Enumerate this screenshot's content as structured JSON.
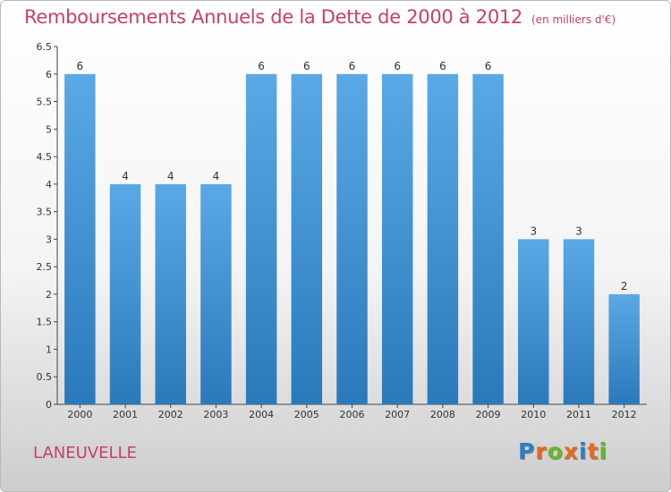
{
  "page": {
    "title": "Remboursements Annuels de la Dette de 2000 à 2012",
    "subtitle": "(en milliers d'€)",
    "place": "LANEUVELLE",
    "logo_letters": [
      "P",
      "r",
      "o",
      "x",
      "i",
      "t",
      "i"
    ],
    "logo_colors": [
      "#2c7fc9",
      "#e8681e",
      "#66b72c",
      "#e8681e",
      "#2c7fc9",
      "#e8681e",
      "#66b72c"
    ]
  },
  "chart_data": {
    "type": "bar",
    "title": "Remboursements Annuels de la Dette de 2000 à 2012",
    "xlabel": "",
    "ylabel": "",
    "categories": [
      "2000",
      "2001",
      "2002",
      "2003",
      "2004",
      "2005",
      "2006",
      "2007",
      "2008",
      "2009",
      "2010",
      "2011",
      "2012"
    ],
    "values": [
      6,
      4,
      4,
      4,
      6,
      6,
      6,
      6,
      6,
      6,
      3,
      3,
      2
    ],
    "data_labels": [
      "6",
      "4",
      "4",
      "4",
      "6",
      "6",
      "6",
      "6",
      "6",
      "6",
      "3",
      "3",
      "2"
    ],
    "ylim": [
      0,
      6.5
    ],
    "yticks": [
      0,
      0.5,
      1,
      1.5,
      2,
      2.5,
      3,
      3.5,
      4,
      4.5,
      5,
      5.5,
      6,
      6.5
    ],
    "ytick_labels": [
      "0",
      "0.5",
      "1",
      "1.5",
      "2",
      "2.5",
      "3",
      "3.5",
      "4",
      "4.5",
      "5",
      "5.5",
      "6",
      "6.5"
    ],
    "grid": false,
    "colors": {
      "bar_light": "#5aa9e6",
      "bar_dark": "#2a79bb",
      "axis": "#444444",
      "text": "#333333"
    }
  }
}
